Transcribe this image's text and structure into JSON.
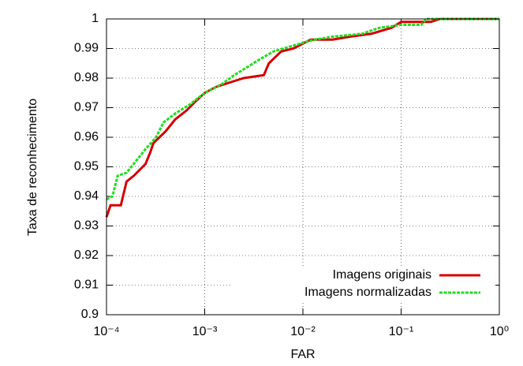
{
  "chart_data": {
    "type": "line",
    "xlabel": "FAR",
    "ylabel": "Taxa de reconhecimento",
    "xscale": "log",
    "xlim": [
      0.0001,
      1
    ],
    "ylim": [
      0.9,
      1
    ],
    "xticks": [
      {
        "value": 0.0001,
        "label": "10⁻⁴"
      },
      {
        "value": 0.001,
        "label": "10⁻³"
      },
      {
        "value": 0.01,
        "label": "10⁻²"
      },
      {
        "value": 0.1,
        "label": "10⁻¹"
      },
      {
        "value": 1,
        "label": "10⁰"
      }
    ],
    "yticks": [
      0.9,
      0.91,
      0.92,
      0.93,
      0.94,
      0.95,
      0.96,
      0.97,
      0.98,
      0.99,
      1
    ],
    "grid": true,
    "legend": "lower right",
    "series": [
      {
        "name": "Imagens originais",
        "color": "#d40000",
        "dash": false,
        "x": [
          0.0001,
          0.00011,
          0.00014,
          0.00016,
          0.00019,
          0.00025,
          0.00028,
          0.0003,
          0.0004,
          0.0005,
          0.00065,
          0.0008,
          0.001,
          0.0013,
          0.002,
          0.0025,
          0.004,
          0.0045,
          0.006,
          0.008,
          0.012,
          0.02,
          0.03,
          0.05,
          0.08,
          0.1,
          0.2,
          0.25,
          1
        ],
        "values": [
          0.933,
          0.937,
          0.937,
          0.945,
          0.947,
          0.951,
          0.955,
          0.958,
          0.962,
          0.966,
          0.969,
          0.972,
          0.975,
          0.977,
          0.979,
          0.98,
          0.981,
          0.985,
          0.989,
          0.99,
          0.993,
          0.993,
          0.994,
          0.995,
          0.997,
          0.999,
          0.999,
          1,
          1
        ]
      },
      {
        "name": "Imagens normalizadas",
        "color": "#22dd22",
        "dash": true,
        "x": [
          0.0001,
          0.000115,
          0.00013,
          0.00016,
          0.0002,
          0.00025,
          0.00032,
          0.00038,
          0.0005,
          0.0007,
          0.001,
          0.0015,
          0.002,
          0.0028,
          0.0035,
          0.005,
          0.008,
          0.013,
          0.02,
          0.04,
          0.06,
          0.1,
          0.16,
          0.18,
          1
        ],
        "values": [
          0.939,
          0.94,
          0.947,
          0.948,
          0.952,
          0.956,
          0.96,
          0.965,
          0.968,
          0.971,
          0.975,
          0.978,
          0.981,
          0.984,
          0.986,
          0.989,
          0.991,
          0.993,
          0.994,
          0.995,
          0.997,
          0.998,
          0.998,
          1,
          1
        ]
      }
    ]
  }
}
